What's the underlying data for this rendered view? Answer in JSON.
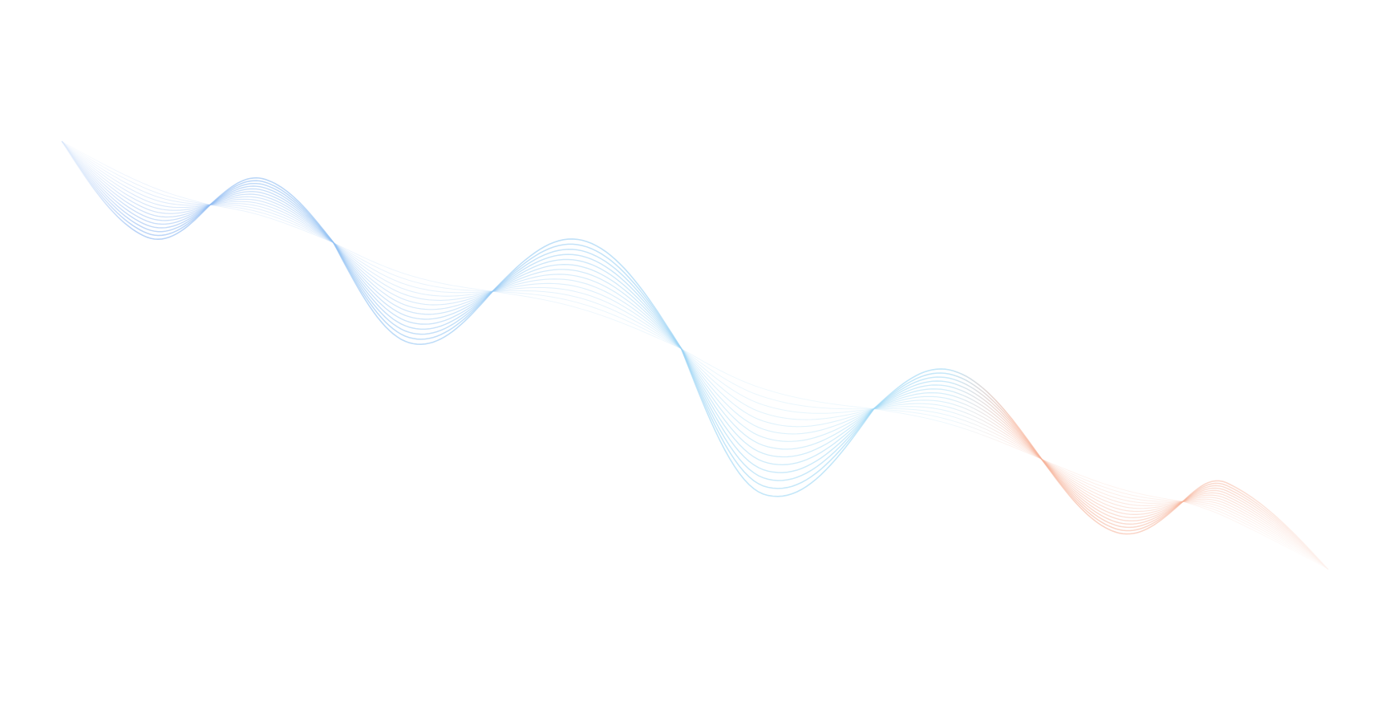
{
  "background": "#ffffff",
  "wave": {
    "colors": {
      "start": "#8fb8f2",
      "middle": "#9fd8f5",
      "end": "#f6b39a"
    }
  }
}
